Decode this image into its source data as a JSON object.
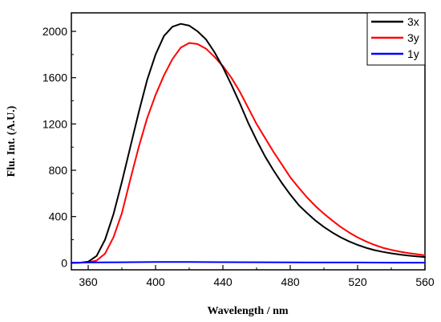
{
  "chart_data": {
    "type": "line",
    "xlabel": "Wavelength / nm",
    "ylabel": "Flu. Int. (A.U.)",
    "xlim": [
      350,
      560
    ],
    "ylim": [
      -60,
      2160
    ],
    "x_ticks": [
      360,
      400,
      440,
      480,
      520,
      560
    ],
    "y_ticks": [
      0,
      400,
      800,
      1200,
      1600,
      2000
    ],
    "x_tick_labels": [
      "360",
      "400",
      "440",
      "480",
      "520",
      "560"
    ],
    "y_tick_labels": [
      "0",
      "400",
      "800",
      "1200",
      "1600",
      "2000"
    ],
    "grid": false,
    "legend_position": "top-right",
    "series": [
      {
        "name": "3x",
        "color": "#000000",
        "x": [
          350,
          355,
          360,
          365,
          370,
          375,
          380,
          385,
          390,
          395,
          400,
          405,
          410,
          415,
          420,
          425,
          430,
          435,
          440,
          445,
          450,
          455,
          460,
          465,
          470,
          475,
          480,
          485,
          490,
          495,
          500,
          505,
          510,
          515,
          520,
          525,
          530,
          535,
          540,
          545,
          550,
          555,
          560
        ],
        "y": [
          0,
          2,
          10,
          60,
          200,
          420,
          700,
          1000,
          1300,
          1580,
          1800,
          1960,
          2040,
          2065,
          2050,
          2000,
          1930,
          1820,
          1690,
          1540,
          1380,
          1210,
          1060,
          920,
          800,
          690,
          590,
          500,
          430,
          365,
          310,
          262,
          220,
          185,
          155,
          130,
          110,
          95,
          82,
          72,
          63,
          56,
          50
        ]
      },
      {
        "name": "3y",
        "color": "#ff0000",
        "x": [
          350,
          355,
          360,
          365,
          370,
          375,
          380,
          385,
          390,
          395,
          400,
          405,
          410,
          415,
          420,
          425,
          430,
          435,
          440,
          445,
          450,
          455,
          460,
          465,
          470,
          475,
          480,
          485,
          490,
          495,
          500,
          505,
          510,
          515,
          520,
          525,
          530,
          535,
          540,
          545,
          550,
          555,
          560
        ],
        "y": [
          0,
          1,
          5,
          20,
          80,
          220,
          430,
          720,
          1000,
          1250,
          1450,
          1620,
          1760,
          1860,
          1900,
          1890,
          1850,
          1780,
          1700,
          1600,
          1480,
          1340,
          1200,
          1080,
          960,
          850,
          740,
          650,
          565,
          490,
          425,
          365,
          310,
          262,
          220,
          185,
          155,
          130,
          112,
          97,
          85,
          75,
          65
        ]
      },
      {
        "name": "1y",
        "color": "#0000ff",
        "x": [
          350,
          360,
          380,
          400,
          420,
          440,
          460,
          480,
          500,
          520,
          540,
          560
        ],
        "y": [
          2,
          3,
          5,
          7,
          8,
          6,
          5,
          4,
          3,
          3,
          2,
          2
        ]
      }
    ]
  }
}
